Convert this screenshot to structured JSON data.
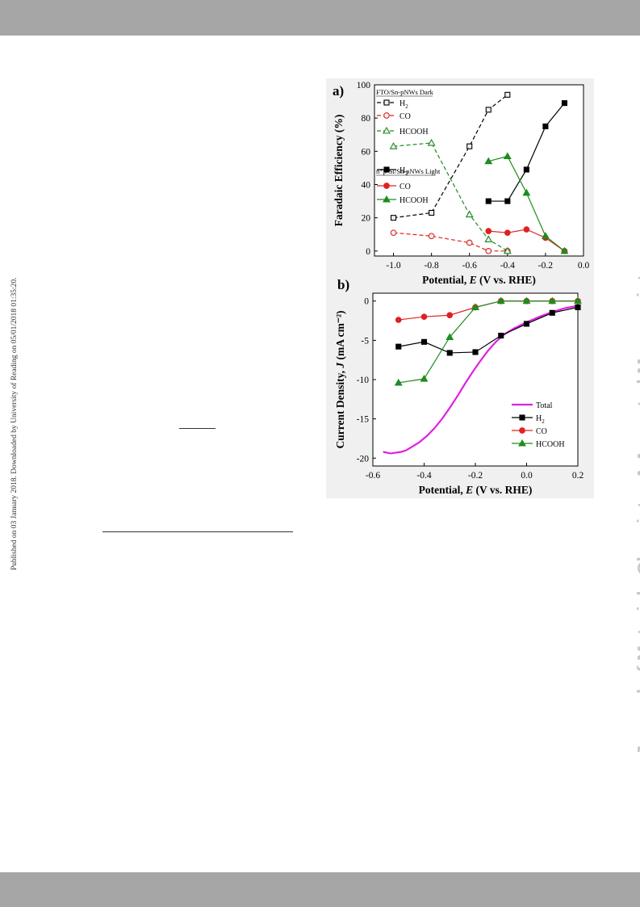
{
  "page": {
    "side_note_left": "Published on 03 January 2018. Downloaded by University of Reading on 05/01/2018 01:35:20.",
    "side_note_right": "Journal of Materials Chemistry A Accepted Manuscript"
  },
  "chart_data": [
    {
      "type": "line",
      "panel_label": "a)",
      "xlabel": "Potential, E (V vs. RHE)",
      "ylabel": "Faradaic Efficiency (%)",
      "xlim": [
        -1.1,
        0.0
      ],
      "ylim": [
        -3,
        100
      ],
      "xticks": [
        "-1.0",
        "-0.8",
        "-0.6",
        "-0.4",
        "-0.2",
        "0.0"
      ],
      "yticks": [
        "0",
        "20",
        "40",
        "60",
        "80",
        "100"
      ],
      "legend": {
        "group1_title": "FTO/Sn-pNWs Dark",
        "group2_title": "n⁺p-Si/Sn-pNWs Light"
      },
      "series": [
        {
          "name": "H2",
          "group": 1,
          "color": "#000000",
          "marker": "square",
          "filled": false,
          "dashed": true,
          "x": [
            -1.0,
            -0.8,
            -0.6,
            -0.5,
            -0.4
          ],
          "y": [
            20,
            23,
            63,
            85,
            94
          ]
        },
        {
          "name": "CO",
          "group": 1,
          "color": "#e02020",
          "marker": "circle",
          "filled": false,
          "dashed": true,
          "x": [
            -1.0,
            -0.8,
            -0.6,
            -0.5,
            -0.4
          ],
          "y": [
            11,
            9,
            5,
            0,
            0
          ]
        },
        {
          "name": "HCOOH",
          "group": 1,
          "color": "#1e8c1e",
          "marker": "triangle",
          "filled": false,
          "dashed": true,
          "x": [
            -1.0,
            -0.8,
            -0.6,
            -0.5,
            -0.4
          ],
          "y": [
            63,
            65,
            22,
            7,
            0
          ]
        },
        {
          "name": "H2",
          "group": 2,
          "color": "#000000",
          "marker": "square",
          "filled": true,
          "dashed": false,
          "x": [
            -0.5,
            -0.4,
            -0.3,
            -0.2,
            -0.1
          ],
          "y": [
            30,
            30,
            49,
            75,
            89
          ]
        },
        {
          "name": "CO",
          "group": 2,
          "color": "#e02020",
          "marker": "circle",
          "filled": true,
          "dashed": false,
          "x": [
            -0.5,
            -0.4,
            -0.3,
            -0.2,
            -0.1
          ],
          "y": [
            12,
            11,
            13,
            8,
            0
          ]
        },
        {
          "name": "HCOOH",
          "group": 2,
          "color": "#1e8c1e",
          "marker": "triangle",
          "filled": true,
          "dashed": false,
          "x": [
            -0.5,
            -0.4,
            -0.3,
            -0.2,
            -0.1
          ],
          "y": [
            54,
            57,
            35,
            9,
            0
          ]
        }
      ]
    },
    {
      "type": "line",
      "panel_label": "b)",
      "xlabel": "Potential, E (V vs. RHE)",
      "ylabel": "Current Density, J (mA cm⁻²)",
      "xlim": [
        -0.6,
        0.2
      ],
      "ylim": [
        -21,
        1
      ],
      "xticks": [
        "-0.6",
        "-0.4",
        "-0.2",
        "0.0",
        "0.2"
      ],
      "yticks": [
        "0",
        "-5",
        "-10",
        "-15",
        "-20"
      ],
      "series": [
        {
          "name": "Total",
          "color": "#e020e0",
          "marker": "none",
          "x": [
            -0.56,
            -0.53,
            -0.51,
            -0.49,
            -0.47,
            -0.45,
            -0.42,
            -0.39,
            -0.36,
            -0.33,
            -0.3,
            -0.27,
            -0.24,
            -0.21,
            -0.18,
            -0.15,
            -0.12,
            -0.09,
            -0.05,
            0.0,
            0.05,
            0.1,
            0.15,
            0.2
          ],
          "y": [
            -19.2,
            -19.4,
            -19.3,
            -19.2,
            -19.0,
            -18.6,
            -18.0,
            -17.2,
            -16.2,
            -15.0,
            -13.6,
            -12.1,
            -10.5,
            -9.0,
            -7.6,
            -6.3,
            -5.2,
            -4.3,
            -3.5,
            -2.7,
            -2.0,
            -1.4,
            -0.9,
            -0.6
          ]
        },
        {
          "name": "H2",
          "color": "#000000",
          "marker": "square",
          "x": [
            -0.5,
            -0.4,
            -0.3,
            -0.2,
            -0.1,
            0.0,
            0.1,
            0.2
          ],
          "y": [
            -5.8,
            -5.2,
            -6.6,
            -6.5,
            -4.4,
            -2.9,
            -1.5,
            -0.8
          ]
        },
        {
          "name": "CO",
          "color": "#e02020",
          "marker": "circle",
          "x": [
            -0.5,
            -0.4,
            -0.3,
            -0.2,
            -0.1,
            0.0,
            0.1,
            0.2
          ],
          "y": [
            -2.4,
            -2.0,
            -1.8,
            -0.8,
            0,
            0,
            0,
            0
          ]
        },
        {
          "name": "HCOOH",
          "color": "#1e8c1e",
          "marker": "triangle",
          "x": [
            -0.5,
            -0.4,
            -0.3,
            -0.2,
            -0.1,
            0.0,
            0.1,
            0.2
          ],
          "y": [
            -10.4,
            -9.9,
            -4.6,
            -0.8,
            0,
            0,
            0,
            0
          ]
        }
      ]
    }
  ]
}
